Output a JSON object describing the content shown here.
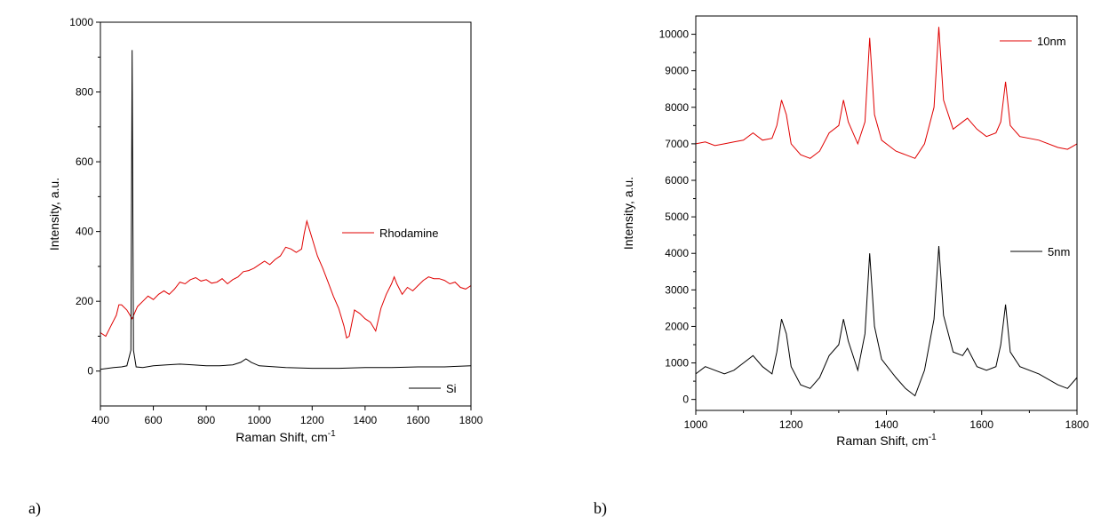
{
  "chart_data": [
    {
      "type": "line",
      "panel_label": "a)",
      "xlabel": "Raman Shift, cm",
      "xlabel_superscript": "-1",
      "ylabel": "Intensity, a.u.",
      "xlim": [
        400,
        1800
      ],
      "ylim": [
        -100,
        1000
      ],
      "x_ticks": [
        400,
        600,
        800,
        1000,
        1200,
        1400,
        1600,
        1800
      ],
      "y_ticks": [
        0,
        200,
        400,
        600,
        800,
        1000
      ],
      "series": [
        {
          "name": "Rhodamine",
          "color": "#e00000",
          "points": [
            [
              400,
              110
            ],
            [
              420,
              100
            ],
            [
              440,
              130
            ],
            [
              460,
              160
            ],
            [
              470,
              190
            ],
            [
              480,
              190
            ],
            [
              500,
              175
            ],
            [
              520,
              150
            ],
            [
              540,
              185
            ],
            [
              560,
              200
            ],
            [
              580,
              215
            ],
            [
              600,
              205
            ],
            [
              620,
              220
            ],
            [
              640,
              230
            ],
            [
              660,
              220
            ],
            [
              680,
              235
            ],
            [
              700,
              255
            ],
            [
              720,
              250
            ],
            [
              740,
              262
            ],
            [
              760,
              268
            ],
            [
              780,
              258
            ],
            [
              800,
              262
            ],
            [
              820,
              252
            ],
            [
              840,
              255
            ],
            [
              860,
              265
            ],
            [
              880,
              250
            ],
            [
              900,
              262
            ],
            [
              920,
              270
            ],
            [
              940,
              285
            ],
            [
              960,
              288
            ],
            [
              980,
              295
            ],
            [
              1000,
              305
            ],
            [
              1020,
              315
            ],
            [
              1040,
              305
            ],
            [
              1060,
              320
            ],
            [
              1080,
              330
            ],
            [
              1100,
              355
            ],
            [
              1120,
              350
            ],
            [
              1140,
              340
            ],
            [
              1160,
              350
            ],
            [
              1170,
              395
            ],
            [
              1180,
              430
            ],
            [
              1190,
              405
            ],
            [
              1200,
              380
            ],
            [
              1220,
              330
            ],
            [
              1240,
              295
            ],
            [
              1260,
              255
            ],
            [
              1280,
              215
            ],
            [
              1300,
              180
            ],
            [
              1320,
              130
            ],
            [
              1330,
              95
            ],
            [
              1340,
              100
            ],
            [
              1360,
              175
            ],
            [
              1380,
              165
            ],
            [
              1400,
              150
            ],
            [
              1420,
              140
            ],
            [
              1440,
              115
            ],
            [
              1460,
              180
            ],
            [
              1480,
              220
            ],
            [
              1500,
              250
            ],
            [
              1510,
              270
            ],
            [
              1520,
              250
            ],
            [
              1540,
              220
            ],
            [
              1560,
              240
            ],
            [
              1580,
              230
            ],
            [
              1600,
              245
            ],
            [
              1620,
              260
            ],
            [
              1640,
              270
            ],
            [
              1660,
              265
            ],
            [
              1680,
              265
            ],
            [
              1700,
              260
            ],
            [
              1720,
              250
            ],
            [
              1740,
              255
            ],
            [
              1760,
              240
            ],
            [
              1780,
              235
            ],
            [
              1800,
              245
            ]
          ]
        },
        {
          "name": "Si",
          "color": "#000000",
          "points": [
            [
              400,
              5
            ],
            [
              450,
              10
            ],
            [
              480,
              12
            ],
            [
              500,
              15
            ],
            [
              515,
              60
            ],
            [
              520,
              920
            ],
            [
              525,
              60
            ],
            [
              535,
              12
            ],
            [
              560,
              10
            ],
            [
              600,
              15
            ],
            [
              650,
              18
            ],
            [
              700,
              20
            ],
            [
              750,
              18
            ],
            [
              800,
              15
            ],
            [
              850,
              15
            ],
            [
              900,
              18
            ],
            [
              930,
              25
            ],
            [
              950,
              35
            ],
            [
              970,
              25
            ],
            [
              1000,
              15
            ],
            [
              1100,
              10
            ],
            [
              1200,
              8
            ],
            [
              1300,
              8
            ],
            [
              1400,
              10
            ],
            [
              1500,
              10
            ],
            [
              1600,
              12
            ],
            [
              1700,
              12
            ],
            [
              1800,
              15
            ]
          ]
        }
      ]
    },
    {
      "type": "line",
      "panel_label": "b)",
      "xlabel": "Raman Shift, cm",
      "xlabel_superscript": "-1",
      "ylabel": "Intensity, a.u.",
      "xlim": [
        1000,
        1800
      ],
      "ylim": [
        -300,
        10500
      ],
      "x_ticks": [
        1000,
        1200,
        1400,
        1600,
        1800
      ],
      "x_minor_ticks": [
        1100,
        1300,
        1500,
        1700
      ],
      "y_ticks": [
        0,
        1000,
        2000,
        3000,
        4000,
        5000,
        6000,
        7000,
        8000,
        9000,
        10000
      ],
      "series": [
        {
          "name": "10nm",
          "color": "#e00000",
          "points": [
            [
              1000,
              7000
            ],
            [
              1020,
              7050
            ],
            [
              1040,
              6950
            ],
            [
              1060,
              7000
            ],
            [
              1080,
              7050
            ],
            [
              1100,
              7100
            ],
            [
              1120,
              7300
            ],
            [
              1140,
              7100
            ],
            [
              1160,
              7150
            ],
            [
              1170,
              7500
            ],
            [
              1180,
              8200
            ],
            [
              1190,
              7800
            ],
            [
              1200,
              7000
            ],
            [
              1220,
              6700
            ],
            [
              1240,
              6600
            ],
            [
              1260,
              6800
            ],
            [
              1280,
              7300
            ],
            [
              1300,
              7500
            ],
            [
              1310,
              8200
            ],
            [
              1320,
              7600
            ],
            [
              1340,
              7000
            ],
            [
              1355,
              7600
            ],
            [
              1365,
              9900
            ],
            [
              1375,
              7800
            ],
            [
              1390,
              7100
            ],
            [
              1420,
              6800
            ],
            [
              1440,
              6700
            ],
            [
              1460,
              6600
            ],
            [
              1480,
              7000
            ],
            [
              1500,
              8000
            ],
            [
              1510,
              10200
            ],
            [
              1520,
              8200
            ],
            [
              1540,
              7400
            ],
            [
              1560,
              7600
            ],
            [
              1570,
              7700
            ],
            [
              1590,
              7400
            ],
            [
              1610,
              7200
            ],
            [
              1630,
              7300
            ],
            [
              1640,
              7600
            ],
            [
              1650,
              8700
            ],
            [
              1660,
              7500
            ],
            [
              1680,
              7200
            ],
            [
              1720,
              7100
            ],
            [
              1760,
              6900
            ],
            [
              1780,
              6850
            ],
            [
              1800,
              7000
            ]
          ]
        },
        {
          "name": "5nm",
          "color": "#000000",
          "points": [
            [
              1000,
              700
            ],
            [
              1020,
              900
            ],
            [
              1040,
              800
            ],
            [
              1060,
              700
            ],
            [
              1080,
              800
            ],
            [
              1100,
              1000
            ],
            [
              1120,
              1200
            ],
            [
              1140,
              900
            ],
            [
              1160,
              700
            ],
            [
              1170,
              1300
            ],
            [
              1180,
              2200
            ],
            [
              1190,
              1800
            ],
            [
              1200,
              900
            ],
            [
              1220,
              400
            ],
            [
              1240,
              300
            ],
            [
              1260,
              600
            ],
            [
              1280,
              1200
            ],
            [
              1300,
              1500
            ],
            [
              1310,
              2200
            ],
            [
              1320,
              1600
            ],
            [
              1340,
              800
            ],
            [
              1355,
              1800
            ],
            [
              1365,
              4000
            ],
            [
              1375,
              2000
            ],
            [
              1390,
              1100
            ],
            [
              1420,
              600
            ],
            [
              1440,
              300
            ],
            [
              1460,
              100
            ],
            [
              1480,
              800
            ],
            [
              1500,
              2200
            ],
            [
              1510,
              4200
            ],
            [
              1520,
              2300
            ],
            [
              1540,
              1300
            ],
            [
              1560,
              1200
            ],
            [
              1570,
              1400
            ],
            [
              1590,
              900
            ],
            [
              1610,
              800
            ],
            [
              1630,
              900
            ],
            [
              1640,
              1500
            ],
            [
              1650,
              2600
            ],
            [
              1660,
              1300
            ],
            [
              1680,
              900
            ],
            [
              1720,
              700
            ],
            [
              1760,
              400
            ],
            [
              1780,
              300
            ],
            [
              1800,
              600
            ]
          ]
        }
      ]
    }
  ]
}
